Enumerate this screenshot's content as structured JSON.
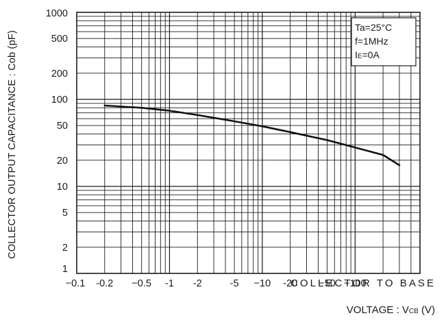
{
  "chart_data": {
    "type": "line",
    "ylabel": "COLLECTOR OUTPUT CAPACITANCE : Cob (pF)",
    "xlabel_inline": "COLLECTOR  TO  BASE",
    "xlabel_line2": "VOLTAGE : V",
    "xlabel_line2_sub": "CB",
    "xlabel_line2_unit": " (V)",
    "x_scale": "log",
    "y_scale": "log",
    "xlim": [
      -0.1,
      -500
    ],
    "ylim": [
      1,
      1000
    ],
    "grid": true,
    "x_tick_labels": [
      "−0.1",
      "-0.2",
      "−0.5",
      "-1",
      "-2",
      "-5",
      "−10",
      "-20",
      "−50",
      "−100"
    ],
    "x_tick_values": [
      0.1,
      0.2,
      0.5,
      1,
      2,
      5,
      10,
      20,
      50,
      100
    ],
    "y_tick_labels": [
      "1000",
      "500",
      "200",
      "100",
      "50",
      "20",
      "10",
      "5",
      "2",
      "1"
    ],
    "y_tick_values": [
      1000,
      500,
      200,
      100,
      50,
      20,
      10,
      5,
      2,
      1
    ],
    "conditions": {
      "ta": "Ta=25°C",
      "f": "f=1MHz",
      "ie_main": "I",
      "ie_sub": "E",
      "ie_value": "=0A"
    },
    "series": [
      {
        "color": "#111111",
        "x": [
          -0.2,
          -0.5,
          -1,
          -2,
          -5,
          -10,
          -20,
          -50,
          -100,
          -200,
          -300
        ],
        "y": [
          85,
          80,
          74,
          66,
          56,
          49,
          42,
          34,
          28,
          23,
          17.5
        ]
      }
    ]
  }
}
